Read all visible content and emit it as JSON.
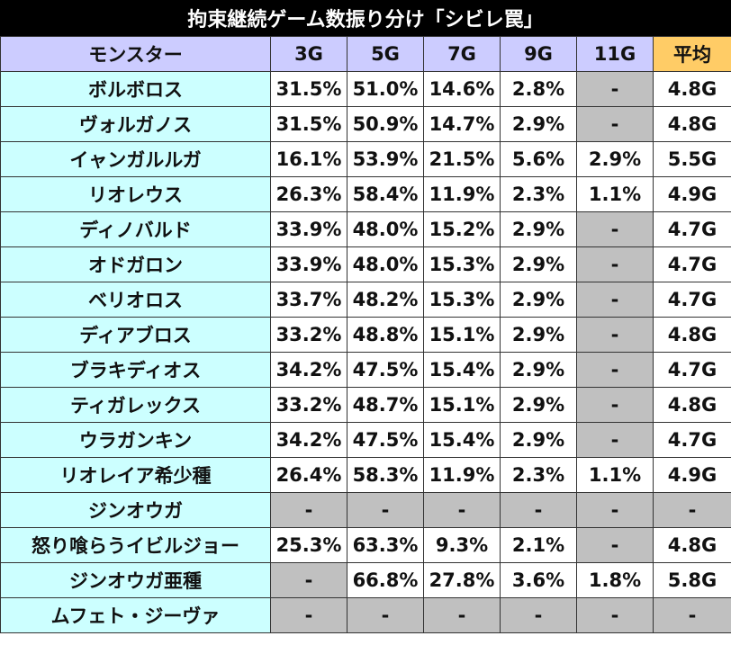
{
  "title": "拘束継続ゲーム数振り分け「シビレ罠」",
  "headers": [
    "モンスター",
    "3G",
    "5G",
    "7G",
    "9G",
    "11G",
    "平均"
  ],
  "rows": [
    {
      "name": "ボルボロス",
      "cells": [
        "31.5%",
        "51.0%",
        "14.6%",
        "2.8%",
        "-",
        "4.8G"
      ],
      "empty": [
        false,
        false,
        false,
        false,
        true,
        false
      ]
    },
    {
      "name": "ヴォルガノス",
      "cells": [
        "31.5%",
        "50.9%",
        "14.7%",
        "2.9%",
        "-",
        "4.8G"
      ],
      "empty": [
        false,
        false,
        false,
        false,
        true,
        false
      ]
    },
    {
      "name": "イャンガルルガ",
      "cells": [
        "16.1%",
        "53.9%",
        "21.5%",
        "5.6%",
        "2.9%",
        "5.5G"
      ],
      "empty": [
        false,
        false,
        false,
        false,
        false,
        false
      ]
    },
    {
      "name": "リオレウス",
      "cells": [
        "26.3%",
        "58.4%",
        "11.9%",
        "2.3%",
        "1.1%",
        "4.9G"
      ],
      "empty": [
        false,
        false,
        false,
        false,
        false,
        false
      ]
    },
    {
      "name": "ディノバルド",
      "cells": [
        "33.9%",
        "48.0%",
        "15.2%",
        "2.9%",
        "-",
        "4.7G"
      ],
      "empty": [
        false,
        false,
        false,
        false,
        true,
        false
      ]
    },
    {
      "name": "オドガロン",
      "cells": [
        "33.9%",
        "48.0%",
        "15.3%",
        "2.9%",
        "-",
        "4.7G"
      ],
      "empty": [
        false,
        false,
        false,
        false,
        true,
        false
      ]
    },
    {
      "name": "ベリオロス",
      "cells": [
        "33.7%",
        "48.2%",
        "15.3%",
        "2.9%",
        "-",
        "4.7G"
      ],
      "empty": [
        false,
        false,
        false,
        false,
        true,
        false
      ]
    },
    {
      "name": "ディアブロス",
      "cells": [
        "33.2%",
        "48.8%",
        "15.1%",
        "2.9%",
        "-",
        "4.8G"
      ],
      "empty": [
        false,
        false,
        false,
        false,
        true,
        false
      ]
    },
    {
      "name": "ブラキディオス",
      "cells": [
        "34.2%",
        "47.5%",
        "15.4%",
        "2.9%",
        "-",
        "4.7G"
      ],
      "empty": [
        false,
        false,
        false,
        false,
        true,
        false
      ]
    },
    {
      "name": "ティガレックス",
      "cells": [
        "33.2%",
        "48.7%",
        "15.1%",
        "2.9%",
        "-",
        "4.8G"
      ],
      "empty": [
        false,
        false,
        false,
        false,
        true,
        false
      ]
    },
    {
      "name": "ウラガンキン",
      "cells": [
        "34.2%",
        "47.5%",
        "15.4%",
        "2.9%",
        "-",
        "4.7G"
      ],
      "empty": [
        false,
        false,
        false,
        false,
        true,
        false
      ]
    },
    {
      "name": "リオレイア希少種",
      "cells": [
        "26.4%",
        "58.3%",
        "11.9%",
        "2.3%",
        "1.1%",
        "4.9G"
      ],
      "empty": [
        false,
        false,
        false,
        false,
        false,
        false
      ]
    },
    {
      "name": "ジンオウガ",
      "cells": [
        "-",
        "-",
        "-",
        "-",
        "-",
        "-"
      ],
      "empty": [
        true,
        true,
        true,
        true,
        true,
        true
      ]
    },
    {
      "name": "怒り喰らうイビルジョー",
      "cells": [
        "25.3%",
        "63.3%",
        "9.3%",
        "2.1%",
        "-",
        "4.8G"
      ],
      "empty": [
        false,
        false,
        false,
        false,
        true,
        false
      ]
    },
    {
      "name": "ジンオウガ亜種",
      "cells": [
        "-",
        "66.8%",
        "27.8%",
        "3.6%",
        "1.8%",
        "5.8G"
      ],
      "empty": [
        true,
        false,
        false,
        false,
        false,
        false
      ]
    },
    {
      "name": "ムフェト・ジーヴァ",
      "cells": [
        "-",
        "-",
        "-",
        "-",
        "-",
        "-"
      ],
      "empty": [
        true,
        true,
        true,
        true,
        true,
        true
      ]
    }
  ]
}
